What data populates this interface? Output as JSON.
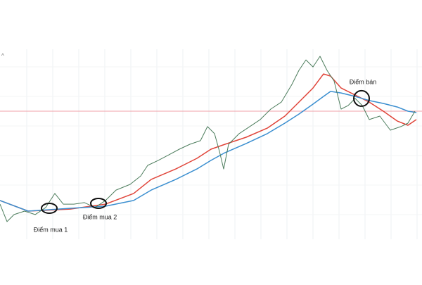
{
  "chart_data": {
    "type": "line",
    "xlim": [
      0,
      600
    ],
    "ylim": [
      0,
      100
    ],
    "x": [
      0,
      10,
      20,
      35,
      50,
      65,
      78,
      90,
      105,
      120,
      135,
      150,
      165,
      185,
      200,
      210,
      225,
      240,
      255,
      270,
      285,
      295,
      305,
      312,
      318,
      325,
      340,
      355,
      370,
      385,
      400,
      415,
      425,
      435,
      445,
      455,
      465,
      475,
      485,
      495,
      505,
      515,
      525,
      540,
      555,
      570,
      580,
      590
    ],
    "series": [
      {
        "color": "#4d7d5d",
        "values": [
          18.5,
          9.3,
          13,
          14.8,
          13,
          16.7,
          24.1,
          18.5,
          18.5,
          19.3,
          16.7,
          20.4,
          25.9,
          28.9,
          33.3,
          38.9,
          41.5,
          44.4,
          47.4,
          50,
          51.9,
          59.3,
          55.6,
          46.3,
          37,
          50,
          55.6,
          59.3,
          63,
          68.5,
          72.2,
          81.5,
          88.9,
          94.4,
          90.7,
          96.3,
          88.9,
          83.3,
          68.5,
          70.4,
          74.1,
          70.4,
          63,
          64.8,
          57.4,
          59.3,
          61.1,
          67.4
        ]
      }
    ],
    "ma_x": [
      0,
      40,
      100,
      150,
      190,
      215,
      250,
      280,
      300,
      320,
      350,
      380,
      405,
      425,
      445,
      460,
      470,
      485,
      505,
      525,
      545,
      565,
      580,
      592
    ],
    "moving_averages": [
      {
        "color": "#e0453a",
        "values": [
          20.4,
          14.8,
          15.9,
          18.5,
          24.1,
          31.5,
          37,
          42.6,
          47.4,
          50,
          53.7,
          58.5,
          64.8,
          72.2,
          79.6,
          87,
          85.9,
          79.6,
          75.9,
          72.2,
          67.4,
          62.2,
          60,
          63
        ]
      },
      {
        "color": "#3b8fd0",
        "values": [
          20.4,
          14.8,
          16.3,
          17.4,
          20.4,
          25.9,
          31.5,
          37,
          41.5,
          45.6,
          50.4,
          55.6,
          61.1,
          65.9,
          71.1,
          75.2,
          77.8,
          77,
          75.2,
          73,
          71.5,
          69.6,
          67.4,
          66.7
        ]
      }
    ],
    "reference_line": {
      "value": 67.4,
      "color": "#f0a0a8"
    },
    "annotations": [
      {
        "text": "Điểm mua 1",
        "x": 70,
        "y": 16.3
      },
      {
        "text": "Điểm mua 2",
        "x": 140,
        "y": 18.9
      },
      {
        "text": "Điểm bán",
        "x": 514,
        "y": 74.1
      }
    ]
  }
}
